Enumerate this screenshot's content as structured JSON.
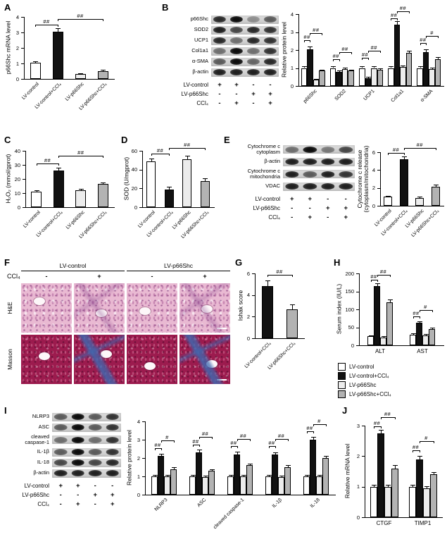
{
  "panels": {
    "A": "A",
    "B": "B",
    "C": "C",
    "D": "D",
    "E": "E",
    "F": "F",
    "G": "G",
    "H": "H",
    "I": "I",
    "J": "J"
  },
  "group_names": [
    "LV-control",
    "LV-control+CCl₄",
    "LV-p66Shc",
    "LV-p66Shc+CCl₄"
  ],
  "group_colors": [
    "#ffffff",
    "#111111",
    "#ececec",
    "#b3b3b3"
  ],
  "chart_data": {
    "A": {
      "type": "bar",
      "ylabel": "p66Shc mRNA level",
      "ylim": [
        0,
        4
      ],
      "yticks": [
        0,
        1,
        2,
        3,
        4
      ],
      "categories": [
        "LV-control",
        "LV-control+CCl₄",
        "LV-p66Shc",
        "LV-p66Shc+CCl₄"
      ],
      "values": [
        1.05,
        3.05,
        0.3,
        0.52
      ],
      "errors": [
        0.08,
        0.22,
        0.05,
        0.06
      ],
      "sig": [
        {
          "a": 0,
          "b": 1,
          "y": 3.5,
          "label": "##"
        },
        {
          "a": 1,
          "b": 3,
          "y": 3.88,
          "label": "##"
        }
      ]
    },
    "B": {
      "type": "bar",
      "ylabel": "Relative protein level",
      "ylim": [
        0,
        4
      ],
      "yticks": [
        0,
        1,
        2,
        3,
        4
      ],
      "categories": [
        "p66Shc",
        "SOD2",
        "UCP1",
        "Col1a1",
        "α-SMA"
      ],
      "series": [
        {
          "name": "LV-control",
          "values": [
            1,
            1,
            1,
            1,
            1
          ],
          "errors": [
            0.08,
            0.08,
            0.08,
            0.1,
            0.08
          ]
        },
        {
          "name": "LV-control+CCl₄",
          "values": [
            2.05,
            0.8,
            0.45,
            3.4,
            1.9
          ],
          "errors": [
            0.15,
            0.07,
            0.06,
            0.2,
            0.12
          ]
        },
        {
          "name": "LV-p66Shc",
          "values": [
            0.35,
            0.95,
            1.0,
            1.05,
            0.95
          ],
          "errors": [
            0.05,
            0.08,
            0.09,
            0.1,
            0.08
          ]
        },
        {
          "name": "LV-p66Shc+CCl₄",
          "values": [
            0.85,
            0.85,
            0.9,
            1.85,
            1.5
          ],
          "errors": [
            0.07,
            0.07,
            0.08,
            0.12,
            0.1
          ]
        }
      ],
      "sig": [
        {
          "a": 0,
          "b": 1,
          "y": 2.55,
          "label": "##"
        },
        {
          "a": 1,
          "b": 3,
          "y": 2.95,
          "label": "##"
        },
        {
          "a": 4,
          "b": 5,
          "y": 1.5,
          "label": "##"
        },
        {
          "a": 5,
          "b": 7,
          "y": 1.9,
          "label": "##"
        },
        {
          "a": 8,
          "b": 9,
          "y": 1.55,
          "label": "##"
        },
        {
          "a": 9,
          "b": 11,
          "y": 1.95,
          "label": "##"
        },
        {
          "a": 12,
          "b": 13,
          "y": 3.75,
          "label": "##"
        },
        {
          "a": 13,
          "b": 15,
          "y": 4.15,
          "label": "##"
        },
        {
          "a": 16,
          "b": 17,
          "y": 2.4,
          "label": "##"
        },
        {
          "a": 17,
          "b": 19,
          "y": 2.8,
          "label": "#"
        }
      ]
    },
    "C": {
      "type": "bar",
      "ylabel": "H₂O₂ (mmol/gprot)",
      "ylim": [
        0,
        40
      ],
      "yticks": [
        0,
        10,
        20,
        30,
        40
      ],
      "categories": [
        "LV-control",
        "LV-control+CCl₄",
        "LV-p66Shc",
        "LV-p66Shc+CCl₄"
      ],
      "values": [
        11,
        26,
        12,
        16.5
      ],
      "errors": [
        1,
        2,
        1,
        1
      ],
      "sig": [
        {
          "a": 0,
          "b": 1,
          "y": 31,
          "label": "##"
        },
        {
          "a": 1,
          "b": 3,
          "y": 36.5,
          "label": "##"
        }
      ]
    },
    "D": {
      "type": "bar",
      "ylabel": "SOD (U/mgprot)",
      "ylim": [
        0,
        60
      ],
      "yticks": [
        0,
        20,
        40,
        60
      ],
      "categories": [
        "LV-control",
        "LV-control+CCl₄",
        "LV-p66Shc",
        "LV-p66Shc+CCl₄"
      ],
      "values": [
        49,
        19,
        51,
        28
      ],
      "errors": [
        3,
        3,
        4,
        3
      ],
      "sig": [
        {
          "a": 0,
          "b": 1,
          "y": 57,
          "label": "##"
        },
        {
          "a": 1,
          "b": 3,
          "y": 63,
          "label": "##"
        }
      ]
    },
    "E": {
      "type": "bar",
      "ylabel": "Cytochrome c release\n(cytoplasm/mitochondria)",
      "ylim": [
        0,
        6
      ],
      "yticks": [
        0,
        2,
        4,
        6
      ],
      "categories": [
        "LV-control",
        "LV-control+CCl₄",
        "LV-p66Shc",
        "LV-p66Shc+CCl₄"
      ],
      "values": [
        1,
        5.2,
        0.9,
        2.1
      ],
      "errors": [
        0.12,
        0.35,
        0.1,
        0.3
      ],
      "sig": [
        {
          "a": 0,
          "b": 1,
          "y": 5.95,
          "label": "##"
        },
        {
          "a": 1,
          "b": 3,
          "y": 6.5,
          "label": "##"
        }
      ]
    },
    "G": {
      "type": "bar",
      "ylabel": "Ishak score",
      "ylim": [
        0,
        6
      ],
      "yticks": [
        0,
        2,
        4,
        6
      ],
      "categories": [
        "LV-control+CCl₄",
        "LV-p66Shc+CCl₄"
      ],
      "values": [
        4.8,
        2.7
      ],
      "errors": [
        0.55,
        0.4
      ],
      "colors": [
        "#111111",
        "#b3b3b3"
      ],
      "sig": [
        {
          "a": 0,
          "b": 1,
          "y": 5.9,
          "label": "##"
        }
      ]
    },
    "H": {
      "type": "bar",
      "ylabel": "Serum index (IU/L)",
      "ylim": [
        0,
        200
      ],
      "yticks": [
        0,
        50,
        100,
        150,
        200
      ],
      "categories": [
        "ALT",
        "AST"
      ],
      "series": [
        {
          "name": "LV-control",
          "values": [
            25,
            30
          ],
          "errors": [
            3,
            3
          ]
        },
        {
          "name": "LV-control+CCl₄",
          "values": [
            165,
            62
          ],
          "errors": [
            8,
            5
          ]
        },
        {
          "name": "LV-p66Shc",
          "values": [
            22,
            28
          ],
          "errors": [
            3,
            3
          ]
        },
        {
          "name": "LV-p66Shc+CCl₄",
          "values": [
            120,
            45
          ],
          "errors": [
            8,
            5
          ]
        }
      ],
      "sig": [
        {
          "a": 0,
          "b": 1,
          "y": 182,
          "label": "##"
        },
        {
          "a": 1,
          "b": 3,
          "y": 196,
          "label": "##"
        },
        {
          "a": 4,
          "b": 5,
          "y": 80,
          "label": "##"
        },
        {
          "a": 5,
          "b": 7,
          "y": 98,
          "label": "#"
        }
      ]
    },
    "I": {
      "type": "bar",
      "ylabel": "Relative protein level",
      "ylim": [
        0,
        4
      ],
      "yticks": [
        0,
        1,
        2,
        3,
        4
      ],
      "categories": [
        "NLRP3",
        "ASC",
        "cleaved caspase-1",
        "IL-1β",
        "IL-18"
      ],
      "series": [
        {
          "name": "LV-control",
          "values": [
            1,
            1,
            1,
            1,
            1
          ],
          "errors": [
            0.08,
            0.08,
            0.08,
            0.08,
            0.08
          ]
        },
        {
          "name": "LV-control+CCl₄",
          "values": [
            2.1,
            2.3,
            2.2,
            2.2,
            3.0
          ],
          "errors": [
            0.12,
            0.15,
            0.15,
            0.12,
            0.15
          ]
        },
        {
          "name": "LV-p66Shc",
          "values": [
            1.0,
            0.95,
            1.0,
            0.95,
            1.0
          ],
          "errors": [
            0.08,
            0.08,
            0.08,
            0.08,
            0.08
          ]
        },
        {
          "name": "LV-p66Shc+CCl₄",
          "values": [
            1.4,
            1.3,
            1.6,
            1.5,
            2.0
          ],
          "errors": [
            0.1,
            0.1,
            0.1,
            0.1,
            0.12
          ]
        }
      ],
      "sig": [
        {
          "a": 0,
          "b": 1,
          "y": 2.55,
          "label": "##"
        },
        {
          "a": 1,
          "b": 3,
          "y": 2.95,
          "label": "#"
        },
        {
          "a": 4,
          "b": 5,
          "y": 2.75,
          "label": "##"
        },
        {
          "a": 5,
          "b": 7,
          "y": 3.15,
          "label": "##"
        },
        {
          "a": 8,
          "b": 9,
          "y": 2.65,
          "label": "##"
        },
        {
          "a": 9,
          "b": 11,
          "y": 3.05,
          "label": "##"
        },
        {
          "a": 12,
          "b": 13,
          "y": 2.65,
          "label": "##"
        },
        {
          "a": 13,
          "b": 15,
          "y": 3.05,
          "label": "##"
        },
        {
          "a": 16,
          "b": 17,
          "y": 3.45,
          "label": "##"
        },
        {
          "a": 17,
          "b": 19,
          "y": 3.85,
          "label": "#"
        }
      ]
    },
    "J": {
      "type": "bar",
      "ylabel": "Relative mRNA level",
      "ylim": [
        0,
        3
      ],
      "yticks": [
        0,
        1,
        2,
        3
      ],
      "categories": [
        "CTGF",
        "TIMP1"
      ],
      "series": [
        {
          "name": "LV-control",
          "values": [
            1,
            1
          ],
          "errors": [
            0.07,
            0.07
          ]
        },
        {
          "name": "LV-control+CCl₄",
          "values": [
            2.75,
            1.9
          ],
          "errors": [
            0.12,
            0.1
          ]
        },
        {
          "name": "LV-p66Shc",
          "values": [
            1.0,
            0.95
          ],
          "errors": [
            0.07,
            0.07
          ]
        },
        {
          "name": "LV-p66Shc+CCl₄",
          "values": [
            1.6,
            1.4
          ],
          "errors": [
            0.1,
            0.08
          ]
        }
      ],
      "sig": [
        {
          "a": 0,
          "b": 1,
          "y": 2.98,
          "label": "##"
        },
        {
          "a": 1,
          "b": 3,
          "y": 3.28,
          "label": "##"
        },
        {
          "a": 4,
          "b": 5,
          "y": 2.2,
          "label": "##"
        },
        {
          "a": 5,
          "b": 7,
          "y": 2.5,
          "label": "#"
        }
      ]
    }
  },
  "blots": {
    "B": {
      "rows": [
        {
          "label": "p66Shc",
          "lanes": [
            0.85,
            1,
            0.35,
            0.6
          ]
        },
        {
          "label": "SOD2",
          "lanes": [
            0.9,
            0.7,
            0.85,
            0.8
          ]
        },
        {
          "label": "UCP1",
          "lanes": [
            0.85,
            0.5,
            0.85,
            0.8
          ]
        },
        {
          "label": "Col1a1",
          "lanes": [
            0.5,
            1,
            0.5,
            0.8
          ]
        },
        {
          "label": "α-SMA",
          "lanes": [
            0.6,
            1,
            0.55,
            0.85
          ]
        },
        {
          "label": "β-actin",
          "lanes": [
            0.9,
            0.9,
            0.9,
            0.9
          ]
        }
      ]
    },
    "E": {
      "rows": [
        {
          "label": "Cytochrome c\ncytoplasm",
          "lanes": [
            0.5,
            1,
            0.45,
            0.7
          ]
        },
        {
          "label": "β-actin",
          "lanes": [
            0.9,
            0.9,
            0.9,
            0.9
          ]
        },
        {
          "label": "Cytochrome c\nmitochondria",
          "lanes": [
            0.9,
            0.6,
            0.9,
            0.8
          ]
        },
        {
          "label": "VDAC",
          "lanes": [
            0.9,
            0.9,
            0.9,
            0.9
          ]
        }
      ]
    },
    "I": {
      "rows": [
        {
          "label": "NLRP3",
          "lanes": [
            0.6,
            1,
            0.6,
            0.8
          ]
        },
        {
          "label": "ASC",
          "lanes": [
            0.6,
            1,
            0.6,
            0.8
          ]
        },
        {
          "label": "cleaved\ncaspase-1",
          "lanes": [
            0.5,
            1,
            0.5,
            0.8
          ]
        },
        {
          "label": "IL-1β",
          "lanes": [
            0.6,
            1,
            0.6,
            0.8
          ]
        },
        {
          "label": "IL-18",
          "lanes": [
            0.7,
            1,
            0.7,
            0.85
          ]
        },
        {
          "label": "β-actin",
          "lanes": [
            0.9,
            0.9,
            0.9,
            0.9
          ]
        }
      ]
    }
  },
  "conditions": {
    "rows": [
      {
        "label": "LV-control",
        "values": [
          "+",
          "+",
          "-",
          "-"
        ]
      },
      {
        "label": "LV-p66Shc",
        "values": [
          "-",
          "-",
          "+",
          "+"
        ]
      },
      {
        "label": "CCl₄",
        "values": [
          "-",
          "+",
          "-",
          "+"
        ]
      }
    ]
  },
  "histology": {
    "col_groups": [
      "LV-control",
      "LV-p66Shc"
    ],
    "ccl4_label": "CCl₄",
    "ccl4_values": [
      "-",
      "+",
      "-",
      "+"
    ],
    "rows": [
      {
        "label": "H&E",
        "type": "he"
      },
      {
        "label": "Masson",
        "type": "masson"
      }
    ]
  },
  "legend": {
    "items": [
      {
        "label": "LV-control",
        "color": "#ffffff"
      },
      {
        "label": "LV-control+CCl₄",
        "color": "#111111"
      },
      {
        "label": "LV-p66Shc",
        "color": "#ececec"
      },
      {
        "label": "LV-p66Shc+CCl₄",
        "color": "#b3b3b3"
      }
    ]
  }
}
